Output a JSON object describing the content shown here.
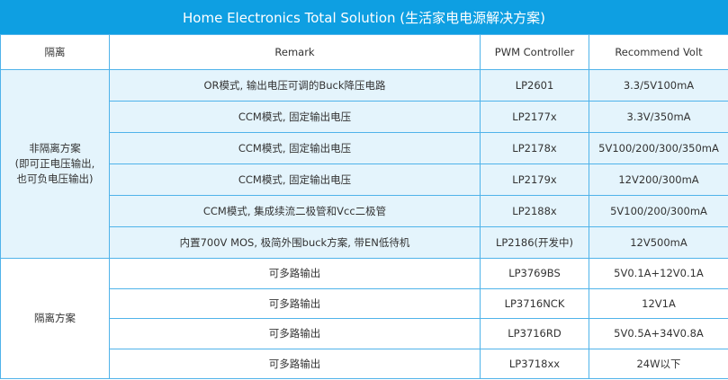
{
  "title": "Home Electronics Total Solution (生活家电电源解决方案)",
  "headers": [
    "隔离",
    "Remark",
    "PWM Controller",
    "Recommend Volt"
  ],
  "groups": [
    {
      "label": "非隔离方案\n(即可正电压输出,\n也可负电压输出)",
      "rows": [
        [
          "OR模式, 输出电压可调的Buck降压电路",
          "LP2601",
          "3.3/5V100mA"
        ],
        [
          "CCM模式, 固定输出电压",
          "LP2177x",
          "3.3V/350mA"
        ],
        [
          "CCM模式, 固定输出电压",
          "LP2178x",
          "5V100/200/300/350mA"
        ],
        [
          "CCM模式, 固定输出电压",
          "LP2179x",
          "12V200/300mA"
        ],
        [
          "CCM模式, 集成续流二极管和Vcc二极管",
          "LP2188x",
          "5V100/200/300mA"
        ],
        [
          "内置700V MOS, 极简外围buck方案, 带EN低待机",
          "LP2186(开发中)",
          "12V500mA"
        ]
      ]
    },
    {
      "label": "隔离方案",
      "rows": [
        [
          "可多路输出",
          "LP3769BS",
          "5V0.1A+12V0.1A"
        ],
        [
          "可多路输出",
          "LP3716NCK",
          "12V1A"
        ],
        [
          "可多路输出",
          "LP3716RD",
          "5V0.5A+34V0.8A"
        ],
        [
          "可多路输出",
          "LP3718xx",
          "24W以下"
        ]
      ]
    }
  ],
  "colors": {
    "title_bg": "#0e9fe2",
    "border": "#4fb3ea",
    "group1_bg": "#e4f4fc"
  }
}
